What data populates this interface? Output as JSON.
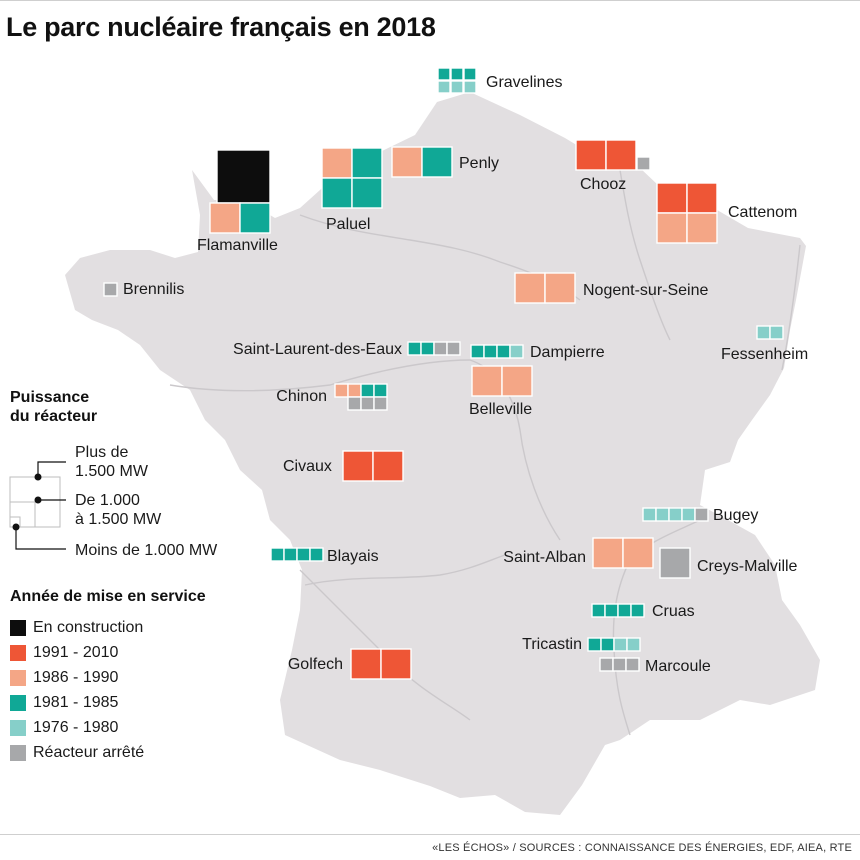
{
  "title": "Le parc nucléaire français en 2018",
  "colors": {
    "construction": "#0d0d0d",
    "y1991_2010": "#ee5636",
    "y1986_1990": "#f4a686",
    "y1981_1985": "#10a896",
    "y1976_1980": "#86cfc9",
    "stopped": "#a7a8aa",
    "land": "#e2dfe1",
    "river": "#cbc8cb"
  },
  "legend_power": {
    "heading_line1": "Puissance",
    "heading_line2": "du réacteur",
    "large_line1": "Plus de",
    "large_line2": "1.500 MW",
    "medium_line1": "De 1.000",
    "medium_line2": "à 1.500 MW",
    "small": "Moins de 1.000 MW"
  },
  "legend_year": {
    "heading": "Année de mise en service",
    "items": [
      {
        "label": "En construction",
        "color": "#0d0d0d"
      },
      {
        "label": "1991 - 2010",
        "color": "#ee5636"
      },
      {
        "label": "1986 - 1990",
        "color": "#f4a686"
      },
      {
        "label": "1981 - 1985",
        "color": "#10a896"
      },
      {
        "label": "1976 - 1980",
        "color": "#86cfc9"
      },
      {
        "label": "Réacteur arrêté",
        "color": "#a7a8aa"
      }
    ]
  },
  "plants": {
    "gravelines": {
      "name": "Gravelines",
      "reactors": [
        "1981-1985",
        "1981-1985",
        "1981-1985",
        "1976-1980",
        "1976-1980",
        "1976-1980"
      ]
    },
    "flamanville": {
      "name": "Flamanville",
      "reactors": [
        "En construction",
        "1986-1990",
        "1981-1985"
      ]
    },
    "paluel": {
      "name": "Paluel",
      "reactors": [
        "1986-1990",
        "1981-1985",
        "1981-1985",
        "1981-1985"
      ]
    },
    "penly": {
      "name": "Penly",
      "reactors": [
        "1986-1990",
        "1981-1985"
      ]
    },
    "chooz": {
      "name": "Chooz",
      "reactors": [
        "1991-2010",
        "1991-2010",
        "Réacteur arrêté"
      ]
    },
    "cattenom": {
      "name": "Cattenom",
      "reactors": [
        "1991-2010",
        "1991-2010",
        "1986-1990",
        "1986-1990"
      ]
    },
    "brennilis": {
      "name": "Brennilis",
      "reactors": [
        "Réacteur arrêté"
      ]
    },
    "nogent": {
      "name": "Nogent-sur-Seine",
      "reactors": [
        "1986-1990",
        "1986-1990"
      ]
    },
    "saint_laurent": {
      "name": "Saint-Laurent-des-Eaux",
      "reactors": [
        "1981-1985",
        "1981-1985",
        "Réacteur arrêté",
        "Réacteur arrêté"
      ]
    },
    "dampierre": {
      "name": "Dampierre",
      "reactors": [
        "1981-1985",
        "1981-1985",
        "1981-1985",
        "1976-1980"
      ]
    },
    "fessenheim": {
      "name": "Fessenheim",
      "reactors": [
        "1976-1980",
        "1976-1980"
      ]
    },
    "chinon": {
      "name": "Chinon",
      "reactors": [
        "1986-1990",
        "1986-1990",
        "1981-1985",
        "1981-1985",
        "Réacteur arrêté",
        "Réacteur arrêté",
        "Réacteur arrêté"
      ]
    },
    "belleville": {
      "name": "Belleville",
      "reactors": [
        "1986-1990",
        "1986-1990"
      ]
    },
    "civaux": {
      "name": "Civaux",
      "reactors": [
        "1991-2010",
        "1991-2010"
      ]
    },
    "bugey": {
      "name": "Bugey",
      "reactors": [
        "1976-1980",
        "1976-1980",
        "1976-1980",
        "1976-1980",
        "Réacteur arrêté"
      ]
    },
    "blayais": {
      "name": "Blayais",
      "reactors": [
        "1981-1985",
        "1981-1985",
        "1981-1985",
        "1981-1985"
      ]
    },
    "saint_alban": {
      "name": "Saint-Alban",
      "reactors": [
        "1986-1990",
        "1986-1990"
      ]
    },
    "creys": {
      "name": "Creys-Malville",
      "reactors": [
        "Réacteur arrêté"
      ]
    },
    "cruas": {
      "name": "Cruas",
      "reactors": [
        "1981-1985",
        "1981-1985",
        "1981-1985",
        "1981-1985"
      ]
    },
    "tricastin": {
      "name": "Tricastin",
      "reactors": [
        "1981-1985",
        "1981-1985",
        "1976-1980",
        "1976-1980"
      ]
    },
    "marcoule": {
      "name": "Marcoule",
      "reactors": [
        "Réacteur arrêté",
        "Réacteur arrêté",
        "Réacteur arrêté"
      ]
    },
    "golfech": {
      "name": "Golfech",
      "reactors": [
        "1991-2010",
        "1991-2010"
      ]
    }
  },
  "footer": "«LES ÉCHOS» / SOURCES : CONNAISSANCE DES ÉNERGIES, EDF, AIEA, RTE"
}
